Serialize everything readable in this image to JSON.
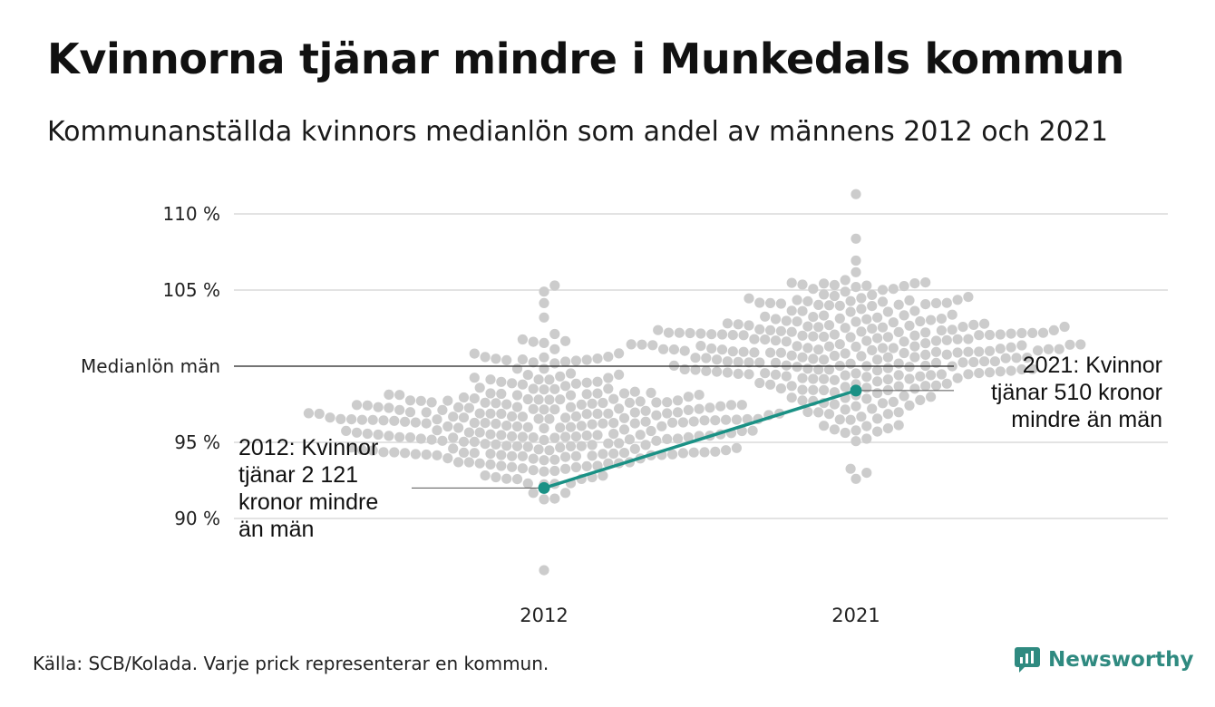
{
  "title": "Kvinnorna tjänar mindre i Munkedals kommun",
  "subtitle": "Kommunanställda kvinnors medianlön som andel av männens 2012 och 2021",
  "source": "Källa: SCB/Kolada. Varje prick representerar en kommun.",
  "logo_text": "Newsworthy",
  "colors": {
    "dots": "#cccccc",
    "highlight": "#1a9185",
    "grid": "#e3e3e3",
    "reference": "#222222"
  },
  "chart_data": {
    "type": "scatter",
    "subtype": "beeswarm",
    "categories": [
      "2012",
      "2021"
    ],
    "yticks": [
      {
        "value": 90,
        "label": "90 %"
      },
      {
        "value": 95,
        "label": "95 %"
      },
      {
        "value": 100,
        "label": "Medianlön män"
      },
      {
        "value": 105,
        "label": "105 %"
      },
      {
        "value": 110,
        "label": "110 %"
      }
    ],
    "ylim": [
      86.5,
      112
    ],
    "reference_line": {
      "value": 100,
      "label": "Medianlön män"
    },
    "distributions": [
      {
        "category": "2012",
        "min": 86.6,
        "max": 105.3,
        "center": 96.2,
        "spread": 2.4,
        "count": 290
      },
      {
        "category": "2021",
        "min": 92.6,
        "max": 111.3,
        "center": 101.3,
        "spread": 2.3,
        "count": 290
      }
    ],
    "highlight": {
      "name": "Munkedals kommun",
      "points": [
        {
          "x": "2012",
          "y": 92.0
        },
        {
          "x": "2021",
          "y": 98.4
        }
      ]
    },
    "annotations": [
      {
        "x": "2012",
        "y": 92.0,
        "lines": [
          "2012: Kvinnor",
          "tjänar 2 121",
          "kronor mindre",
          "än män"
        ]
      },
      {
        "x": "2021",
        "y": 98.4,
        "lines": [
          "2021: Kvinnor",
          "tjänar 510 kronor",
          "mindre än män"
        ]
      }
    ]
  }
}
